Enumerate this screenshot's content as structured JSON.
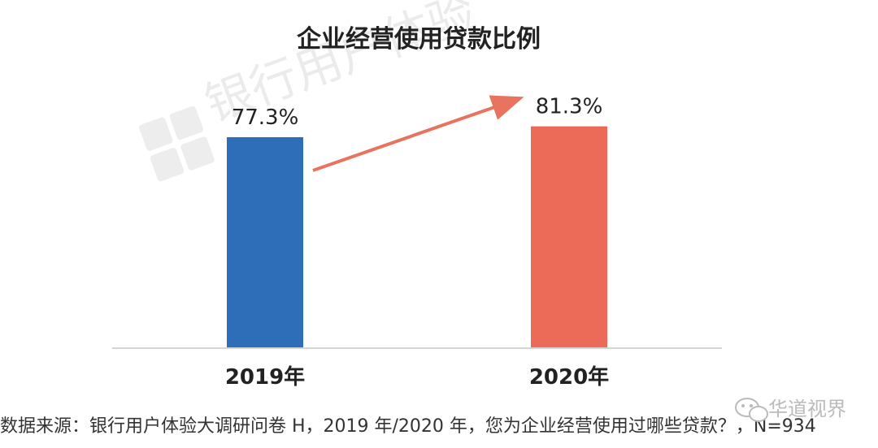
{
  "chart_data": {
    "type": "bar",
    "title": "企业经营使用贷款比例",
    "categories": [
      "2019年",
      "2020年"
    ],
    "values": [
      77.3,
      81.3
    ],
    "value_labels": [
      "77.3%",
      "81.3%"
    ],
    "bar_colors": [
      "#2e6eb8",
      "#ec6a58"
    ],
    "arrow_color": "#e8735f",
    "xlabel": "",
    "ylabel": "",
    "grid": false,
    "legend": "none"
  },
  "source_note": "数据来源：银行用户体验大调研问卷 H，2019 年/2020 年，您为企业经营使用过哪些贷款？，N=934",
  "watermark": {
    "text": "银行用户体验",
    "corner_text": "华道视界"
  }
}
